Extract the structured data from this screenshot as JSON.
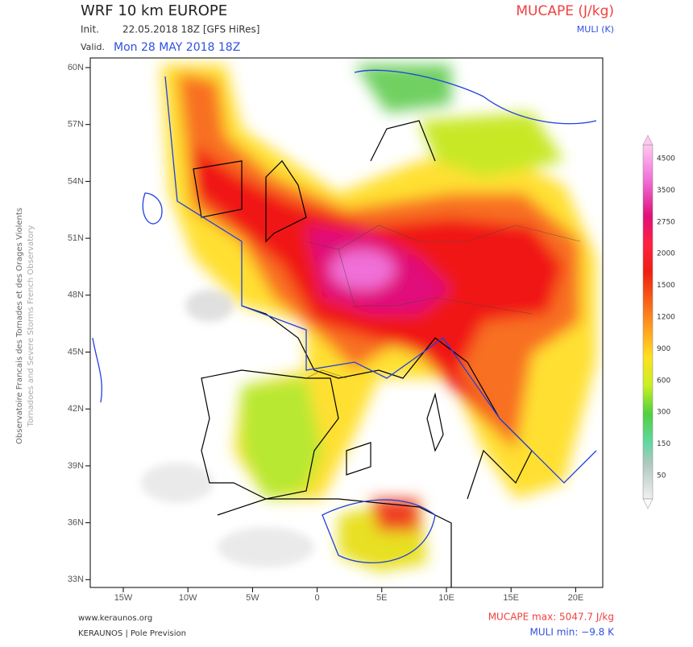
{
  "header": {
    "title": "WRF 10 km EUROPE",
    "init_label": "Init.",
    "init": "22.05.2018 18Z [GFS HiRes]",
    "valid_label": "Valid.",
    "valid": "Mon 28 MAY 2018 18Z",
    "field": "MUCAPE (J/kg)",
    "field2": "MULI (K)"
  },
  "map": {
    "lat_labels": [
      "60N",
      "57N",
      "54N",
      "51N",
      "48N",
      "45N",
      "42N",
      "39N",
      "36N",
      "33N"
    ],
    "lon_labels": [
      "15W",
      "10W",
      "5W",
      "0",
      "5E",
      "10E",
      "15E",
      "20E"
    ]
  },
  "colorbar": {
    "labels": [
      "4500",
      "3500",
      "2750",
      "2000",
      "1500",
      "1200",
      "900",
      "600",
      "300",
      "150",
      "50"
    ]
  },
  "side_text": [
    "Observatoire Francais des Tornades et des Orages Violents",
    "Tornadoes and Severe Storms French Observatory"
  ],
  "footer": {
    "website": "www.keraunos.org",
    "company": "KERAUNOS | Pole Prevision",
    "max": "MUCAPE max: 5047.7 J/kg",
    "min": "MULI min: −9.8 K"
  }
}
